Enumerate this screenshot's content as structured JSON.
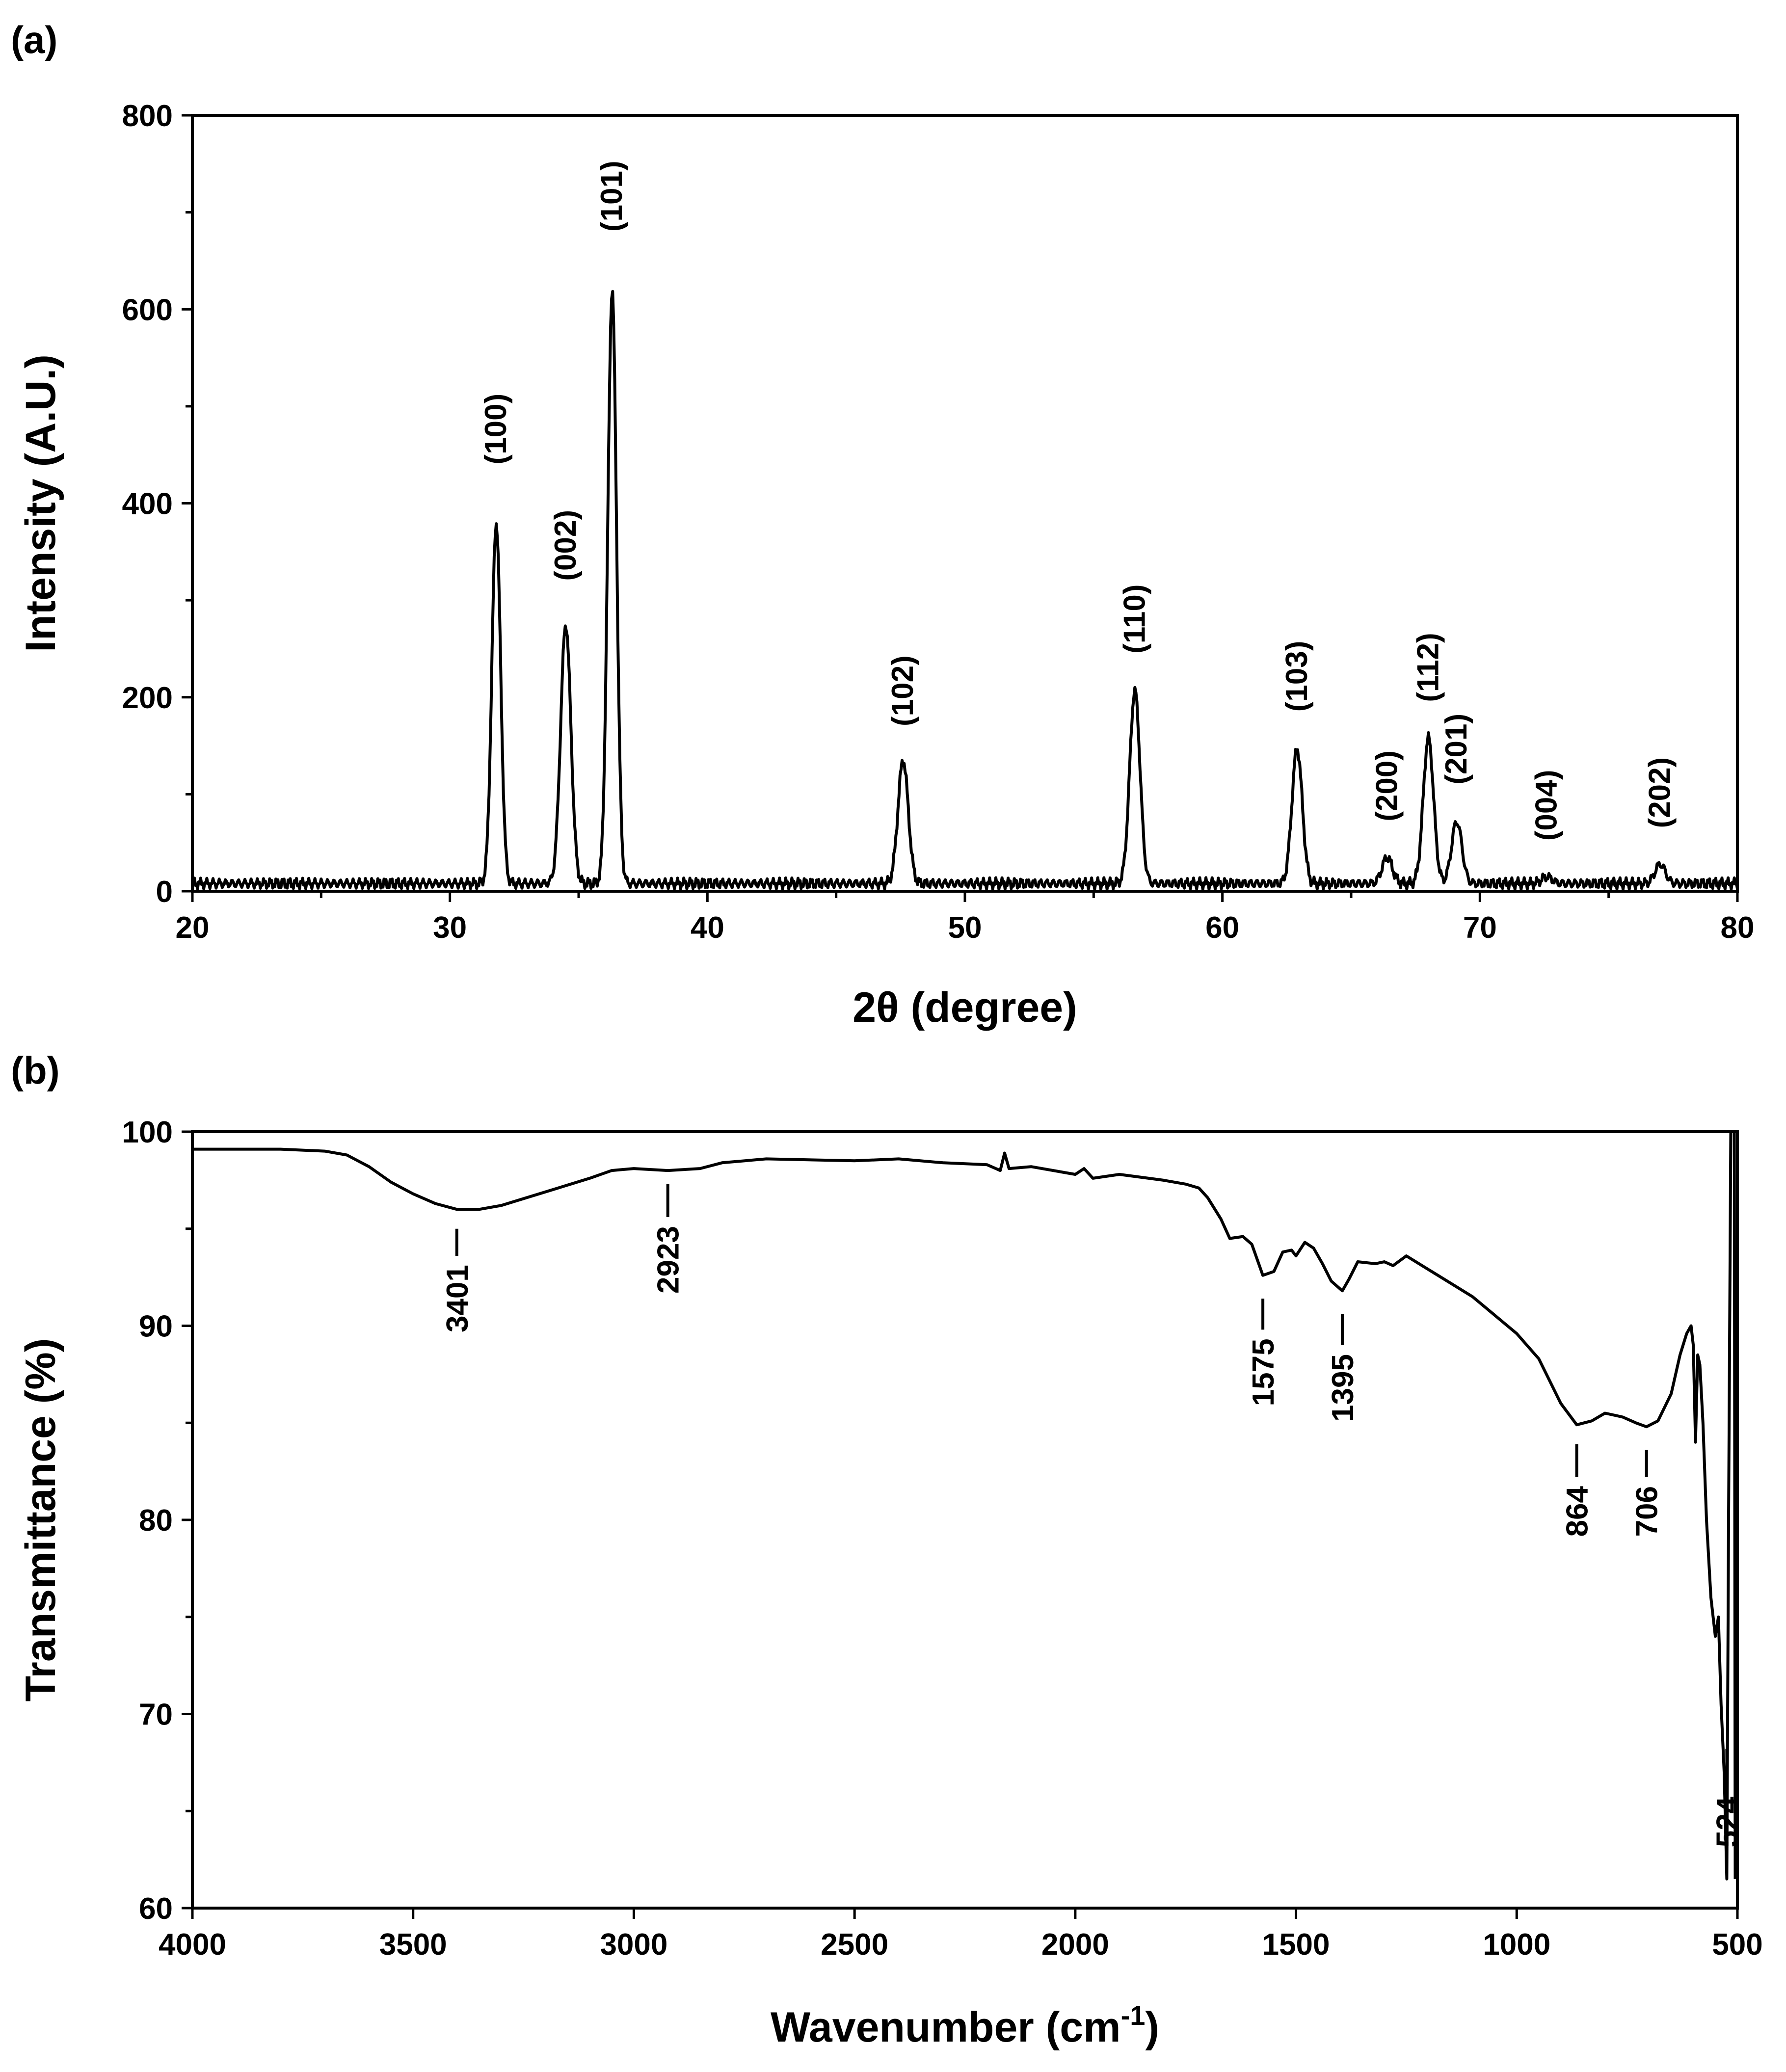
{
  "chart_data": [
    {
      "panel": "(a)",
      "type": "line",
      "title": "",
      "xlabel": "2θ (degree)",
      "ylabel": "Intensity (A.U.)",
      "xlim": [
        20,
        80
      ],
      "ylim": [
        0,
        800
      ],
      "xticks": [
        20,
        30,
        40,
        50,
        60,
        70,
        80
      ],
      "yticks": [
        0,
        200,
        400,
        600,
        800
      ],
      "grid": false,
      "baseline": 8,
      "peaks": [
        {
          "x": 31.8,
          "y": 380,
          "label": "(100)",
          "label_y": 440
        },
        {
          "x": 34.5,
          "y": 275,
          "label": "(002)",
          "label_y": 320
        },
        {
          "x": 36.3,
          "y": 620,
          "label": "(101)",
          "label_y": 680
        },
        {
          "x": 47.6,
          "y": 135,
          "label": "(102)",
          "label_y": 170
        },
        {
          "x": 56.6,
          "y": 207,
          "label": "(110)",
          "label_y": 245
        },
        {
          "x": 62.9,
          "y": 147,
          "label": "(103)",
          "label_y": 185
        },
        {
          "x": 66.4,
          "y": 35,
          "label": "(200)",
          "label_y": 72
        },
        {
          "x": 68.0,
          "y": 158,
          "label": "(112)",
          "label_y": 195
        },
        {
          "x": 69.1,
          "y": 72,
          "label": "(201)",
          "label_y": 110
        },
        {
          "x": 72.6,
          "y": 15,
          "label": "(004)",
          "label_y": 52
        },
        {
          "x": 77.0,
          "y": 28,
          "label": "(202)",
          "label_y": 65
        }
      ]
    },
    {
      "panel": "(b)",
      "type": "line",
      "title": "",
      "xlabel": "Wavenumber (cm",
      "xlabel_sup": "-1",
      "xlabel_end": ")",
      "ylabel": "Transmittance (%)",
      "xlim": [
        4000,
        500
      ],
      "ylim": [
        60,
        100
      ],
      "xticks": [
        4000,
        3500,
        3000,
        2500,
        2000,
        1500,
        1000,
        500
      ],
      "yticks": [
        60,
        70,
        80,
        90,
        100
      ],
      "grid": false,
      "curve": [
        [
          4000,
          99.1
        ],
        [
          3900,
          99.1
        ],
        [
          3800,
          99.1
        ],
        [
          3700,
          99.0
        ],
        [
          3650,
          98.8
        ],
        [
          3600,
          98.2
        ],
        [
          3550,
          97.4
        ],
        [
          3500,
          96.8
        ],
        [
          3450,
          96.3
        ],
        [
          3401,
          96.0
        ],
        [
          3350,
          96.0
        ],
        [
          3300,
          96.2
        ],
        [
          3200,
          96.9
        ],
        [
          3100,
          97.6
        ],
        [
          3050,
          98.0
        ],
        [
          3000,
          98.1
        ],
        [
          2923,
          98.0
        ],
        [
          2850,
          98.1
        ],
        [
          2800,
          98.4
        ],
        [
          2700,
          98.6
        ],
        [
          2500,
          98.5
        ],
        [
          2400,
          98.6
        ],
        [
          2300,
          98.4
        ],
        [
          2200,
          98.3
        ],
        [
          2170,
          98.0
        ],
        [
          2160,
          98.9
        ],
        [
          2150,
          98.1
        ],
        [
          2100,
          98.2
        ],
        [
          2000,
          97.8
        ],
        [
          1980,
          98.1
        ],
        [
          1960,
          97.6
        ],
        [
          1900,
          97.8
        ],
        [
          1800,
          97.5
        ],
        [
          1750,
          97.3
        ],
        [
          1720,
          97.1
        ],
        [
          1700,
          96.6
        ],
        [
          1670,
          95.5
        ],
        [
          1650,
          94.5
        ],
        [
          1620,
          94.6
        ],
        [
          1600,
          94.2
        ],
        [
          1575,
          92.6
        ],
        [
          1550,
          92.8
        ],
        [
          1530,
          93.8
        ],
        [
          1510,
          93.9
        ],
        [
          1500,
          93.6
        ],
        [
          1480,
          94.3
        ],
        [
          1460,
          94.0
        ],
        [
          1440,
          93.2
        ],
        [
          1420,
          92.3
        ],
        [
          1395,
          91.8
        ],
        [
          1380,
          92.4
        ],
        [
          1360,
          93.3
        ],
        [
          1320,
          93.2
        ],
        [
          1300,
          93.3
        ],
        [
          1280,
          93.1
        ],
        [
          1250,
          93.6
        ],
        [
          1200,
          92.9
        ],
        [
          1100,
          91.5
        ],
        [
          1000,
          89.6
        ],
        [
          950,
          88.3
        ],
        [
          900,
          86.0
        ],
        [
          864,
          84.9
        ],
        [
          830,
          85.1
        ],
        [
          800,
          85.5
        ],
        [
          760,
          85.3
        ],
        [
          730,
          85.0
        ],
        [
          706,
          84.8
        ],
        [
          680,
          85.1
        ],
        [
          650,
          86.5
        ],
        [
          630,
          88.5
        ],
        [
          615,
          89.6
        ],
        [
          605,
          90.0
        ],
        [
          600,
          89.0
        ],
        [
          595,
          84.0
        ],
        [
          590,
          88.5
        ],
        [
          585,
          88.0
        ],
        [
          578,
          85.0
        ],
        [
          570,
          80.0
        ],
        [
          560,
          76.0
        ],
        [
          550,
          74.0
        ],
        [
          543,
          75.0
        ],
        [
          537,
          70.5
        ],
        [
          530,
          67.0
        ],
        [
          524,
          61.5
        ],
        [
          520,
          80.0
        ],
        [
          515,
          100.0
        ],
        [
          510,
          100.0
        ],
        [
          507,
          100.0
        ],
        [
          505,
          61.5
        ]
      ],
      "annotations": [
        {
          "x": 3401,
          "label": "3401",
          "tick_top": 95.0,
          "tick_bottom": 93.6
        },
        {
          "x": 2923,
          "label": "2923",
          "tick_top": 97.3,
          "tick_bottom": 95.6
        },
        {
          "x": 1575,
          "label": "1575",
          "tick_top": 91.4,
          "tick_bottom": 89.8
        },
        {
          "x": 1395,
          "label": "1395",
          "tick_top": 90.6,
          "tick_bottom": 89.0
        },
        {
          "x": 864,
          "label": "864",
          "tick_top": 83.9,
          "tick_bottom": 82.2
        },
        {
          "x": 706,
          "label": "706",
          "tick_top": 83.6,
          "tick_bottom": 82.2
        },
        {
          "x": 524,
          "label": "524",
          "tick_top": 68.2,
          "tick_bottom": 66.2
        }
      ]
    }
  ]
}
